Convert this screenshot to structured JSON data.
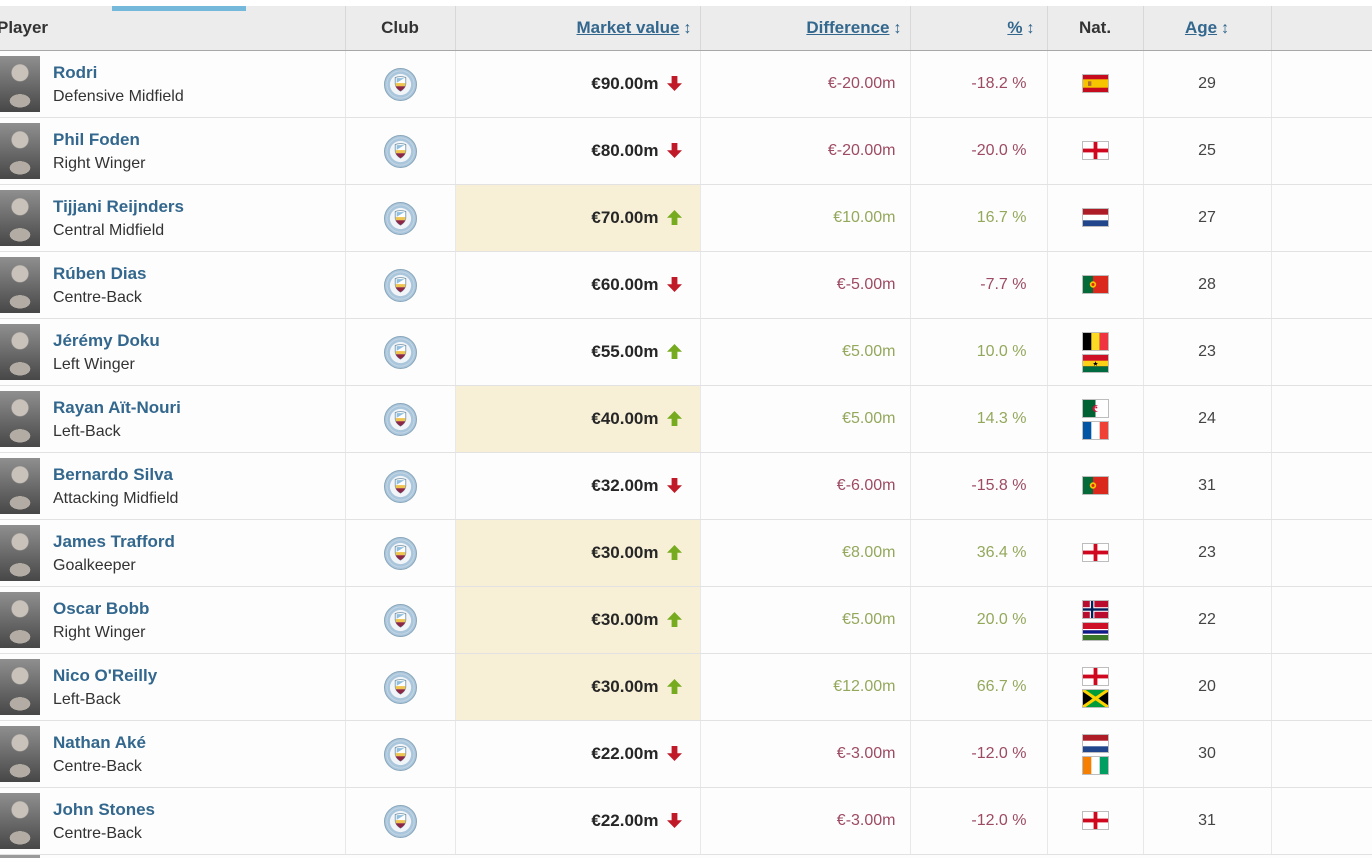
{
  "tab": {
    "active_indicator_color": "#74b9dc"
  },
  "table": {
    "headers": {
      "player": "Player",
      "club": "Club",
      "market_value": "Market value",
      "difference": "Difference",
      "percent": "%",
      "nat": "Nat.",
      "age": "Age",
      "sort_icon": "↕"
    },
    "club_name": "Manchester City",
    "players": [
      {
        "name": "Rodri",
        "position": "Defensive Midfield",
        "market_value": "€90.00m",
        "trend": "down",
        "highlight": false,
        "difference": "€-20.00m",
        "percent": "-18.2 %",
        "nations": [
          "spain"
        ],
        "age": "29"
      },
      {
        "name": "Phil Foden",
        "position": "Right Winger",
        "market_value": "€80.00m",
        "trend": "down",
        "highlight": false,
        "difference": "€-20.00m",
        "percent": "-20.0 %",
        "nations": [
          "england"
        ],
        "age": "25"
      },
      {
        "name": "Tijjani Reijnders",
        "position": "Central Midfield",
        "market_value": "€70.00m",
        "trend": "up",
        "highlight": true,
        "difference": "€10.00m",
        "percent": "16.7 %",
        "nations": [
          "netherlands"
        ],
        "age": "27"
      },
      {
        "name": "Rúben Dias",
        "position": "Centre-Back",
        "market_value": "€60.00m",
        "trend": "down",
        "highlight": false,
        "difference": "€-5.00m",
        "percent": "-7.7 %",
        "nations": [
          "portugal"
        ],
        "age": "28"
      },
      {
        "name": "Jérémy Doku",
        "position": "Left Winger",
        "market_value": "€55.00m",
        "trend": "up",
        "highlight": false,
        "difference": "€5.00m",
        "percent": "10.0 %",
        "nations": [
          "belgium",
          "ghana"
        ],
        "age": "23"
      },
      {
        "name": "Rayan Aït-Nouri",
        "position": "Left-Back",
        "market_value": "€40.00m",
        "trend": "up",
        "highlight": true,
        "difference": "€5.00m",
        "percent": "14.3 %",
        "nations": [
          "algeria",
          "france"
        ],
        "age": "24"
      },
      {
        "name": "Bernardo Silva",
        "position": "Attacking Midfield",
        "market_value": "€32.00m",
        "trend": "down",
        "highlight": false,
        "difference": "€-6.00m",
        "percent": "-15.8 %",
        "nations": [
          "portugal"
        ],
        "age": "31"
      },
      {
        "name": "James Trafford",
        "position": "Goalkeeper",
        "market_value": "€30.00m",
        "trend": "up",
        "highlight": true,
        "difference": "€8.00m",
        "percent": "36.4 %",
        "nations": [
          "england"
        ],
        "age": "23"
      },
      {
        "name": "Oscar Bobb",
        "position": "Right Winger",
        "market_value": "€30.00m",
        "trend": "up",
        "highlight": true,
        "difference": "€5.00m",
        "percent": "20.0 %",
        "nations": [
          "norway",
          "gambia"
        ],
        "age": "22"
      },
      {
        "name": "Nico O'Reilly",
        "position": "Left-Back",
        "market_value": "€30.00m",
        "trend": "up",
        "highlight": true,
        "difference": "€12.00m",
        "percent": "66.7 %",
        "nations": [
          "england",
          "jamaica"
        ],
        "age": "20"
      },
      {
        "name": "Nathan Aké",
        "position": "Centre-Back",
        "market_value": "€22.00m",
        "trend": "down",
        "highlight": false,
        "difference": "€-3.00m",
        "percent": "-12.0 %",
        "nations": [
          "netherlands",
          "ivory-coast"
        ],
        "age": "30"
      },
      {
        "name": "John Stones",
        "position": "Centre-Back",
        "market_value": "€22.00m",
        "trend": "down",
        "highlight": false,
        "difference": "€-3.00m",
        "percent": "-12.0 %",
        "nations": [
          "england"
        ],
        "age": "31"
      }
    ]
  },
  "colors": {
    "link_blue": "#33678d",
    "positive_text": "#94a85c",
    "negative_text": "#9d4a62",
    "arrow_up": "#76ab1f",
    "arrow_down": "#c01a29",
    "highlight_cell": "#f8f0d6",
    "tab_indicator": "#74b9dc"
  }
}
